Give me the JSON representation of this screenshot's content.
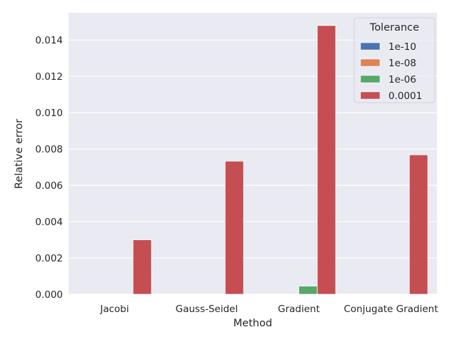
{
  "chart_data": {
    "type": "bar",
    "categories": [
      "Jacobi",
      "Gauss-Seidel",
      "Gradient",
      "Conjugate Gradient"
    ],
    "series": [
      {
        "name": "1e-10",
        "color": "#4c72b0",
        "values": [
          0.0,
          0.0,
          0.0,
          0.0
        ]
      },
      {
        "name": "1e-08",
        "color": "#dd8452",
        "values": [
          0.0,
          0.0,
          0.0,
          0.0
        ]
      },
      {
        "name": "1e-06",
        "color": "#55a868",
        "values": [
          0.0,
          0.0,
          0.00045,
          0.0
        ]
      },
      {
        "name": "0.0001",
        "color": "#c44e52",
        "values": [
          0.003,
          0.00733,
          0.0148,
          0.00768
        ]
      }
    ],
    "xlabel": "Method",
    "ylabel": "Relative error",
    "ylim": [
      0,
      0.0155
    ],
    "yticks": [
      "0.000",
      "0.002",
      "0.004",
      "0.006",
      "0.008",
      "0.010",
      "0.012",
      "0.014"
    ],
    "ytick_values": [
      0,
      0.002,
      0.004,
      0.006,
      0.008,
      0.01,
      0.012,
      0.014
    ],
    "grid": true,
    "background": "#eaeaf2",
    "legend": {
      "title": "Tolerance",
      "placement": "top-right"
    }
  }
}
